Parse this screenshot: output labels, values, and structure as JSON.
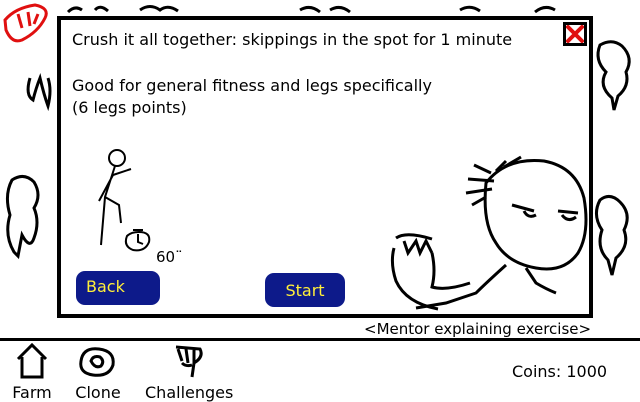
{
  "exercise": {
    "title": "Crush it all together: skippings in the spot for 1 minute",
    "description": "Good for general fitness and legs specifically\n(6 legs points)",
    "timer": "60¨",
    "close_icon": "close-icon"
  },
  "buttons": {
    "back": "Back",
    "start": "Start"
  },
  "caption": "<Mentor explaining exercise>",
  "nav": {
    "farm": "Farm",
    "clone": "Clone",
    "challenges": "Challenges"
  },
  "coins": "Coins: 1000",
  "colors": {
    "button_bg": "#0d1a8a",
    "button_text": "#ffef3a",
    "close_x": "#e01010"
  }
}
